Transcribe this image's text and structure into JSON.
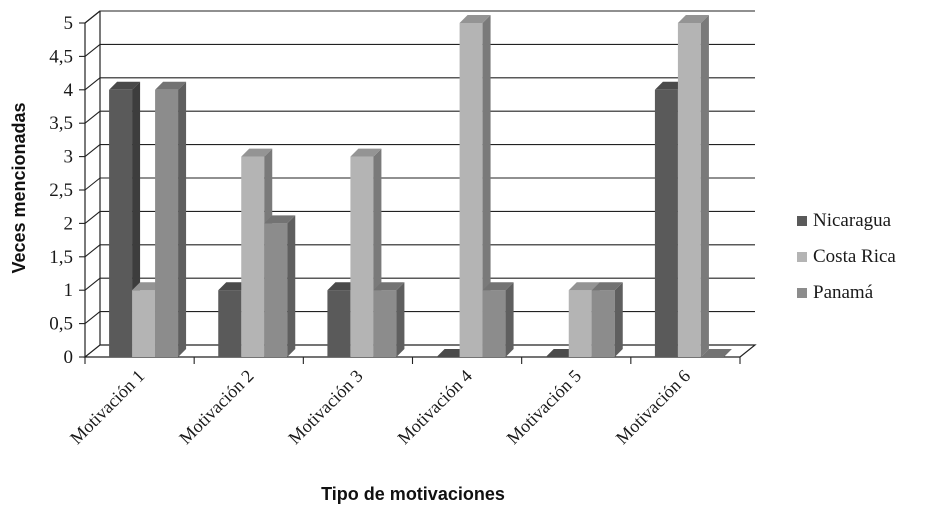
{
  "chart_data": {
    "type": "bar",
    "title": "",
    "xlabel": "Tipo de motivaciones",
    "ylabel": "Veces mencionadas",
    "ylim": [
      0,
      5
    ],
    "yticks": [
      0,
      0.5,
      1,
      1.5,
      2,
      2.5,
      3,
      3.5,
      4,
      4.5,
      5
    ],
    "ytick_labels": [
      "0",
      "0,5",
      "1",
      "1,5",
      "2",
      "2,5",
      "3",
      "3,5",
      "4",
      "4,5",
      "5"
    ],
    "categories": [
      "Motivación 1",
      "Motivación 2",
      "Motivación 3",
      "Motivación 4",
      "Motivación 5",
      "Motivación 6"
    ],
    "series": [
      {
        "name": "Nicaragua",
        "values": [
          4,
          1,
          1,
          0,
          0,
          4
        ],
        "color": "#5a5a5a"
      },
      {
        "name": "Costa Rica",
        "values": [
          1,
          3,
          3,
          5,
          1,
          5
        ],
        "color": "#b4b4b4"
      },
      {
        "name": "Panamá",
        "values": [
          4,
          2,
          1,
          1,
          1,
          0
        ],
        "color": "#8c8c8c"
      }
    ],
    "grid": true,
    "legend_position": "right",
    "style": "3d-clustered-column"
  }
}
